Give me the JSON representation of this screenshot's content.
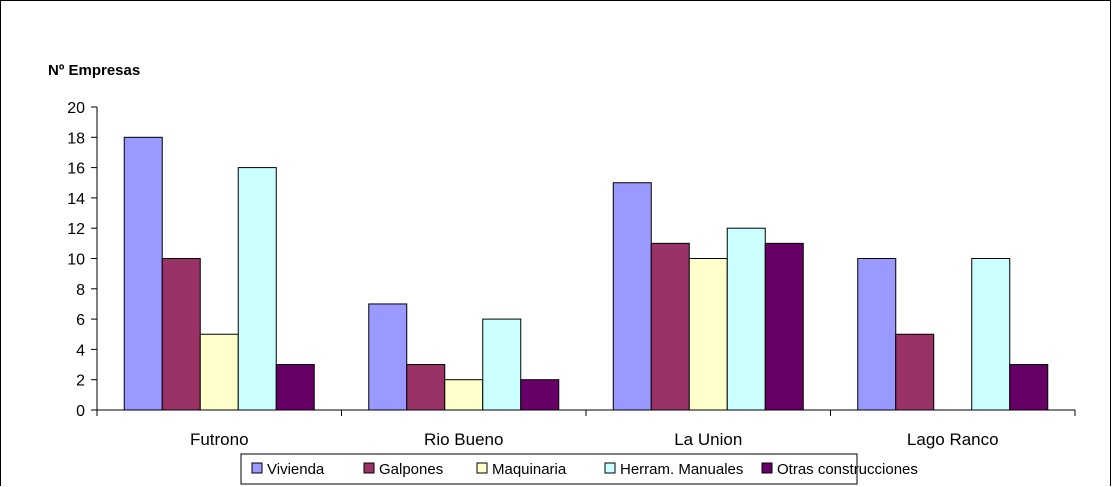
{
  "chart_data": {
    "type": "bar",
    "ylabel": "Nº Empresas",
    "xlabel": "",
    "ylim": [
      0,
      20
    ],
    "yticks": [
      0,
      2,
      4,
      6,
      8,
      10,
      12,
      14,
      16,
      18,
      20
    ],
    "categories": [
      "Futrono",
      "Rio Bueno",
      "La Union",
      "Lago Ranco"
    ],
    "series": [
      {
        "name": "Vivienda",
        "color": "#9999ff",
        "values": [
          18,
          7,
          15,
          10
        ]
      },
      {
        "name": "Galpones",
        "color": "#993366",
        "values": [
          10,
          3,
          11,
          5
        ]
      },
      {
        "name": "Maquinaria",
        "color": "#ffffcc",
        "values": [
          5,
          2,
          10,
          0
        ]
      },
      {
        "name": "Herram. Manuales",
        "color": "#ccffff",
        "values": [
          16,
          6,
          12,
          10
        ]
      },
      {
        "name": "Otras construcciones",
        "color": "#660066",
        "values": [
          3,
          2,
          11,
          3
        ]
      }
    ],
    "legend_position": "bottom",
    "grid": false
  }
}
